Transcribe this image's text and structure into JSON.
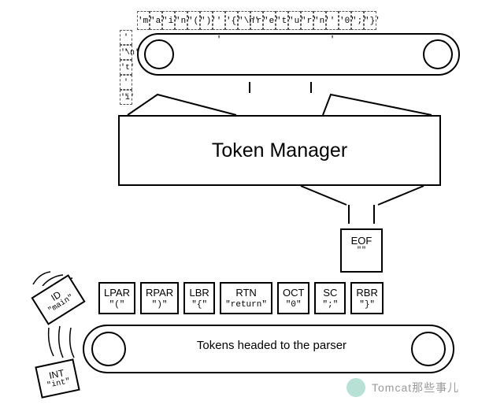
{
  "diagram": {
    "title": "Token Manager",
    "input_chars": [
      "'m'",
      "'a'",
      "'i'",
      "'n'",
      "'('",
      "')'",
      "' '",
      "'{'",
      "'\\n'",
      "'r'",
      "'e'",
      "'t'",
      "'u'",
      "'r'",
      "'n'",
      "' '",
      "'0'",
      "';'",
      "'}'"
    ],
    "side_chars": [
      "' '",
      "'\\n'",
      "'t'",
      "' '",
      "'i'"
    ],
    "eof_token": {
      "name": "EOF",
      "literal": "\"\""
    },
    "tokens": [
      {
        "name": "LPAR",
        "literal": "\"(\""
      },
      {
        "name": "RPAR",
        "literal": "\")\""
      },
      {
        "name": "LBR",
        "literal": "\"{\""
      },
      {
        "name": "RTN",
        "literal": "\"return\""
      },
      {
        "name": "OCT",
        "literal": "\"0\""
      },
      {
        "name": "SC",
        "literal": "\";\""
      },
      {
        "name": "RBR",
        "literal": "\"}\""
      }
    ],
    "falling_tokens": {
      "id": {
        "name": "ID",
        "literal": "\"main\""
      },
      "int": {
        "name": "INT",
        "literal": "\"int\""
      }
    },
    "bottom_label": "Tokens headed to the parser",
    "colors": {
      "stroke": "#000000",
      "bg": "#ffffff",
      "dash": "#555555",
      "watermark_logo": "#33aa88",
      "watermark_text": "#999999"
    }
  },
  "watermark": {
    "text": "Tomcat那些事儿"
  }
}
